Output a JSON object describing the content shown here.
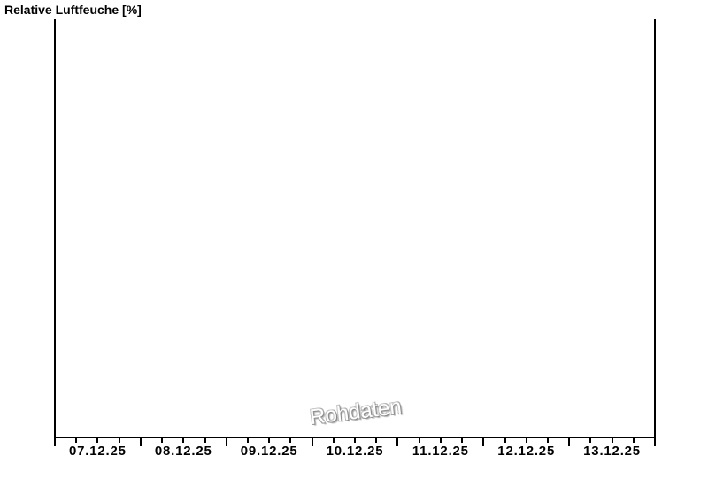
{
  "page": {
    "background_color": "#ffffff"
  },
  "chart_data": {
    "type": "line",
    "title": "Relative Luftfeuche [%]",
    "watermark": "Rohdaten",
    "xlabel": "",
    "ylabel": "",
    "x_tick_labels": [
      "07.12.25",
      "08.12.25",
      "09.12.25",
      "10.12.25",
      "11.12.25",
      "12.12.25",
      "13.12.25"
    ],
    "x_minor_ticks_per_day": 4,
    "y_tick_labels": [],
    "series": [],
    "legend": "none",
    "grid": "off",
    "axis_color": "#000000",
    "label_color": "#000000",
    "watermark_color": "#9e9e9e"
  }
}
